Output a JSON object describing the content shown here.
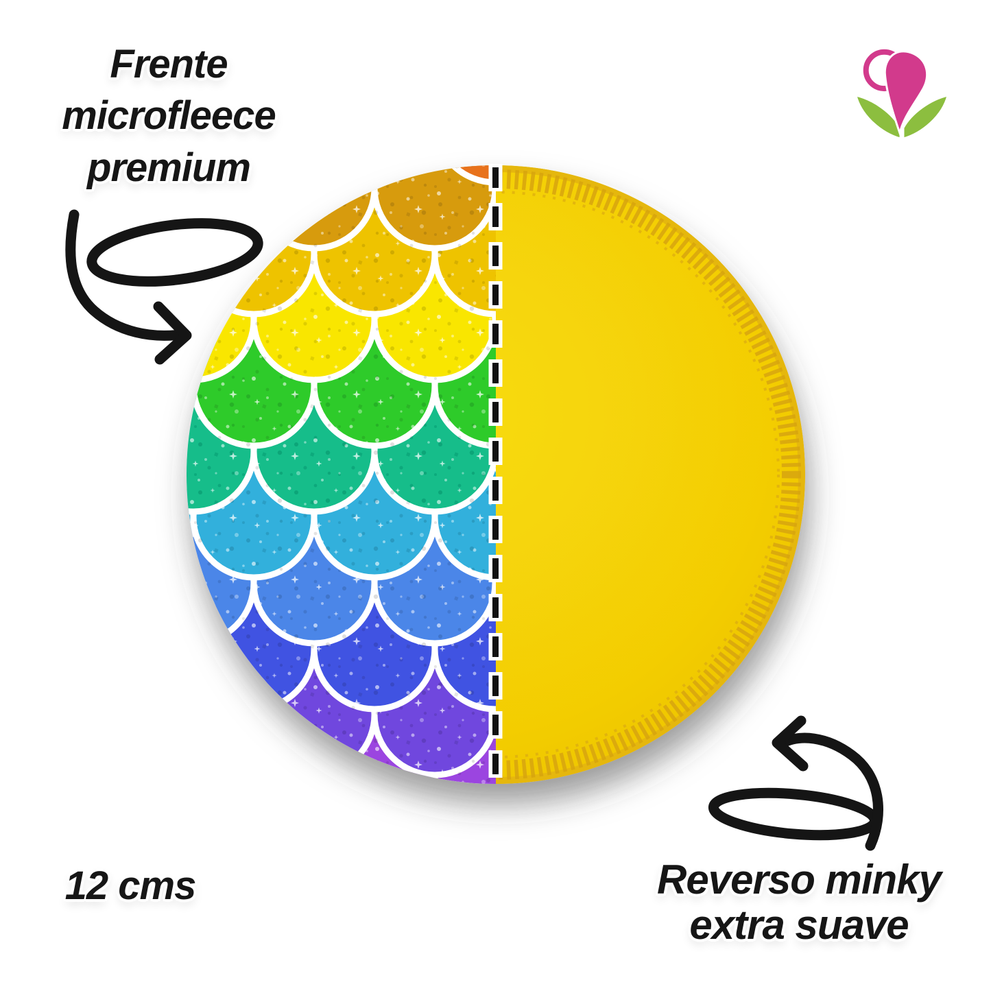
{
  "page": {
    "background": "#ffffff"
  },
  "labels": {
    "front": {
      "lines": [
        "Frente",
        "microfleece",
        "premium"
      ]
    },
    "size": {
      "text": "12 cms"
    },
    "back": {
      "lines": [
        "Reverso minky",
        "extra suave"
      ]
    }
  },
  "logo": {
    "name": "heart-with-leaves-logo",
    "heart_color": "#d23a8c",
    "leaf_color": "#8cbe3f",
    "lobe_fill": "#ffffff"
  },
  "pad": {
    "front": {
      "description": "rainbow glitter mermaid scales fabric",
      "scale_outline_color": "#ffffff",
      "scale_row_colors": [
        "#e8721c",
        "#d79b0b",
        "#eec306",
        "#f9e606",
        "#2ecb2a",
        "#12bd8a",
        "#30b0dc",
        "#4b86e8",
        "#4153e2",
        "#6f46de",
        "#9b45e0"
      ]
    },
    "back": {
      "fabric_color": "#f3cd06",
      "fabric_light": "#f8dc08",
      "edge_stitch_color": "#d7a50b",
      "edge_rim_color": "#e5b70a"
    },
    "divider": {
      "dash_color": "#111111",
      "halo_color": "#ffffff"
    }
  },
  "arrows": {
    "color": "#151515"
  }
}
